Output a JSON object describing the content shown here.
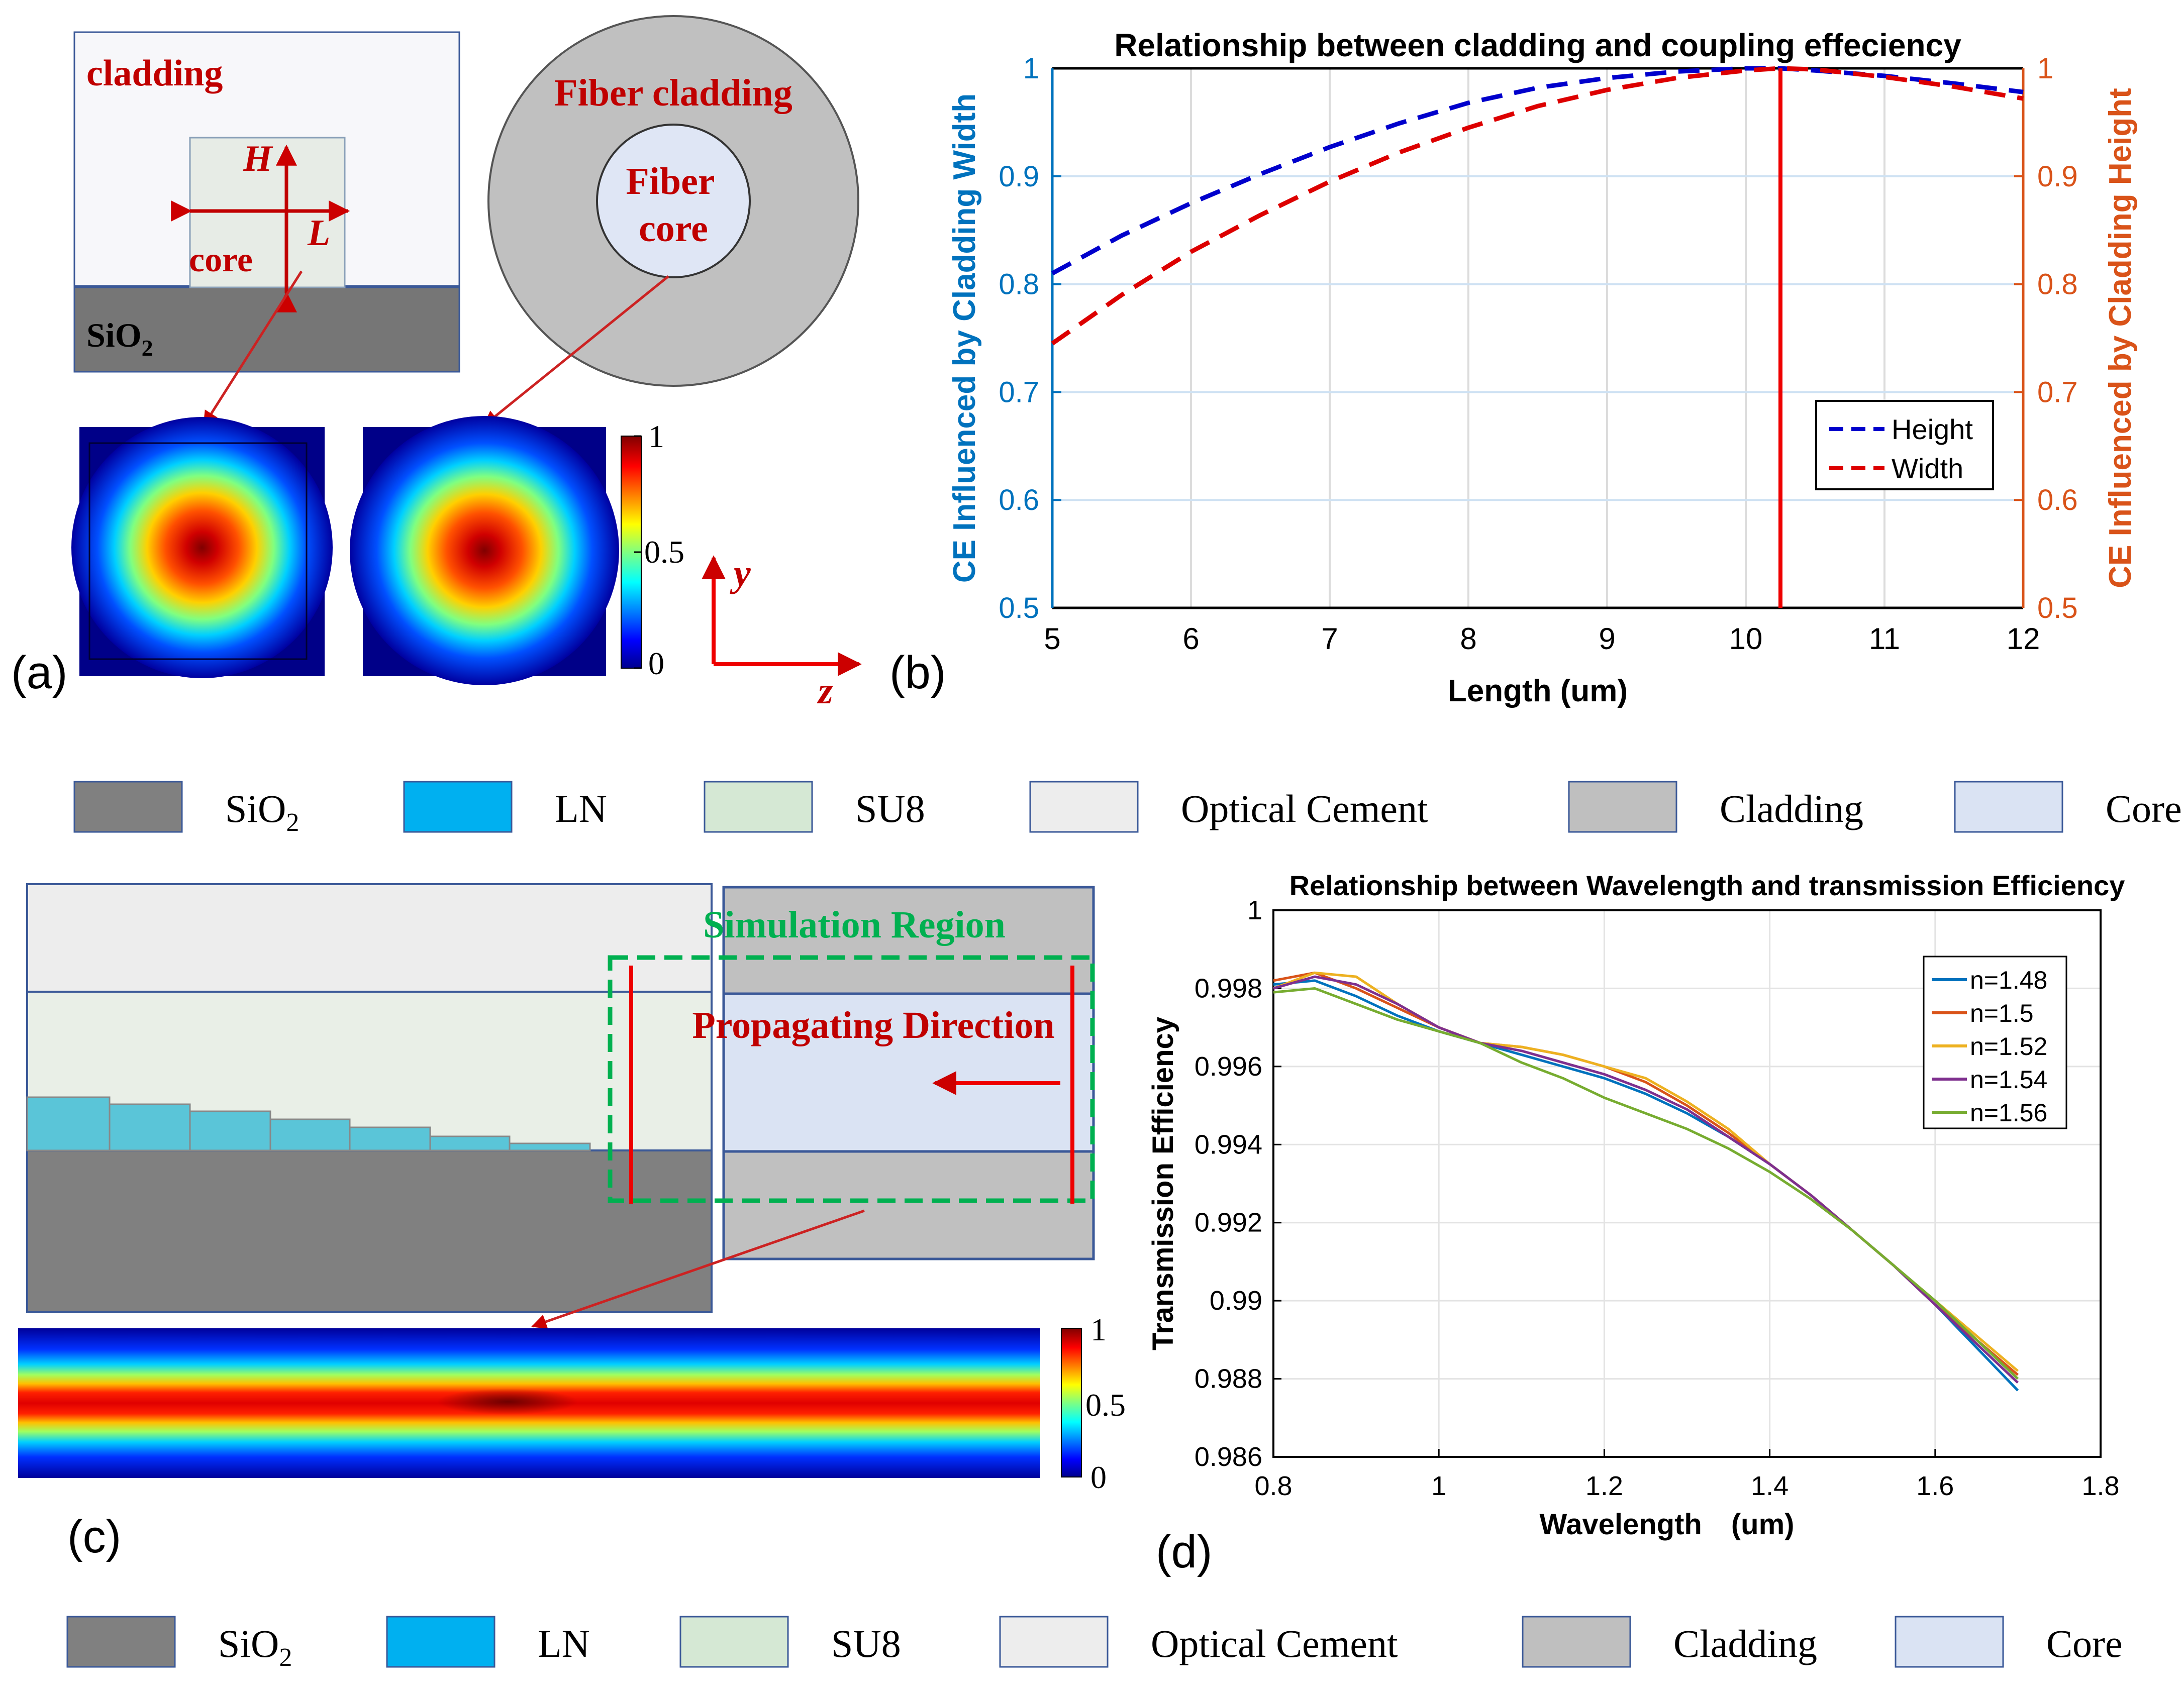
{
  "colors": {
    "sio2": "#808080",
    "ln": "#00b0f0",
    "su8": "#d5e8d4",
    "cement": "#ededed",
    "cladding": "#bfbfbf",
    "core": "#dae3f3",
    "red_label": "#c00000",
    "blue_axis": "#0072bd",
    "orange_axis": "#d95319",
    "green_region": "#00b050"
  },
  "panel_a": {
    "label": "(a)",
    "cladding": "cladding",
    "core": "core",
    "H": "H",
    "L": "L",
    "sio2_main": "SiO",
    "sio2_sub": "2",
    "fiber_cladding": "Fiber cladding",
    "fiber_core_1": "Fiber",
    "fiber_core_2": "core",
    "colorbar": [
      "1",
      "0.5",
      "0"
    ],
    "axis_y": "y",
    "axis_z": "z"
  },
  "panel_b": {
    "label": "(b)"
  },
  "legend_top": [
    {
      "main": "SiO",
      "sub": "2",
      "color_key": "sio2"
    },
    {
      "main": "LN",
      "sub": "",
      "color_key": "ln"
    },
    {
      "main": "SU8",
      "sub": "",
      "color_key": "su8"
    },
    {
      "main": "Optical Cement",
      "sub": "",
      "color_key": "cement"
    },
    {
      "main": "Cladding",
      "sub": "",
      "color_key": "cladding"
    },
    {
      "main": "Core",
      "sub": "",
      "color_key": "core"
    }
  ],
  "legend_bottom": [
    {
      "main": "SiO",
      "sub": "2",
      "color_key": "sio2"
    },
    {
      "main": "LN",
      "sub": "",
      "color_key": "ln"
    },
    {
      "main": "SU8",
      "sub": "",
      "color_key": "su8"
    },
    {
      "main": "Optical Cement",
      "sub": "",
      "color_key": "cement"
    },
    {
      "main": "Cladding",
      "sub": "",
      "color_key": "cladding"
    },
    {
      "main": "Core",
      "sub": "",
      "color_key": "core"
    }
  ],
  "panel_c": {
    "label": "(c)",
    "simulation_region": "Simulation Region",
    "propagating_direction": "Propagating Direction",
    "colorbar": [
      "1",
      "0.5",
      "0"
    ]
  },
  "panel_d": {
    "label": "(d)"
  },
  "chart_data": [
    {
      "type": "line",
      "title": "Relationship between cladding and coupling effeciency",
      "xlabel": "Length   (um)",
      "ylabel_left": "CE Influenced by Cladding Width",
      "ylabel_right": "CE Influenced by Cladding Height",
      "xlim": [
        5,
        12
      ],
      "ylim": [
        0.5,
        1
      ],
      "xticks": [
        "5",
        "6",
        "7",
        "8",
        "9",
        "10",
        "11",
        "12"
      ],
      "yticks_left": [
        "0.5",
        "0.6",
        "0.7",
        "0.8",
        "0.9",
        "1"
      ],
      "yticks_right": [
        "0.5",
        "0.6",
        "0.7",
        "0.8",
        "0.9",
        "1"
      ],
      "vertical_marker_x": 10.25,
      "grid": true,
      "legend_position": "right",
      "x": [
        5,
        5.5,
        6,
        6.5,
        7,
        7.5,
        8,
        8.5,
        9,
        9.5,
        10,
        10.25,
        10.5,
        11,
        11.5,
        12
      ],
      "series": [
        {
          "name": "Height",
          "color": "#0000cc",
          "dash": "dashed",
          "values": [
            0.81,
            0.845,
            0.875,
            0.902,
            0.927,
            0.949,
            0.968,
            0.982,
            0.991,
            0.997,
            1.0,
            1.0,
            0.998,
            0.993,
            0.986,
            0.978
          ]
        },
        {
          "name": "Width",
          "color": "#dd0000",
          "dash": "dashed",
          "values": [
            0.745,
            0.79,
            0.83,
            0.864,
            0.895,
            0.922,
            0.945,
            0.965,
            0.98,
            0.991,
            0.998,
            1.0,
            0.999,
            0.992,
            0.983,
            0.972
          ]
        }
      ]
    },
    {
      "type": "line",
      "title": "Relationship between Wavelength and transmission Efficiency",
      "xlabel": "Wavelength　(um)",
      "ylabel": "Transmission Efficiency",
      "xlim": [
        0.8,
        1.8
      ],
      "ylim": [
        0.986,
        1
      ],
      "xticks": [
        "0.8",
        "1",
        "1.2",
        "1.4",
        "1.6",
        "1.8"
      ],
      "yticks": [
        "0.986",
        "0.988",
        "0.99",
        "0.992",
        "0.994",
        "0.996",
        "0.998",
        "1"
      ],
      "grid": true,
      "legend_position": "top-right",
      "x": [
        0.8,
        0.85,
        0.9,
        0.95,
        1.0,
        1.05,
        1.1,
        1.15,
        1.2,
        1.25,
        1.3,
        1.35,
        1.4,
        1.45,
        1.5,
        1.55,
        1.6,
        1.65,
        1.7
      ],
      "series": [
        {
          "name": "n=1.48",
          "color": "#0072bd",
          "values": [
            0.9981,
            0.9982,
            0.9978,
            0.9973,
            0.9969,
            0.9966,
            0.9963,
            0.996,
            0.9957,
            0.9953,
            0.9948,
            0.9942,
            0.9935,
            0.9927,
            0.9918,
            0.9909,
            0.9899,
            0.9888,
            0.9877
          ]
        },
        {
          "name": "n=1.5",
          "color": "#d95319",
          "values": [
            0.9982,
            0.9984,
            0.998,
            0.9975,
            0.997,
            0.9966,
            0.9965,
            0.9963,
            0.996,
            0.9956,
            0.995,
            0.9943,
            0.9935,
            0.9927,
            0.9918,
            0.9909,
            0.9899,
            0.989,
            0.9881
          ]
        },
        {
          "name": "n=1.52",
          "color": "#edb120",
          "values": [
            0.998,
            0.9984,
            0.9983,
            0.9976,
            0.997,
            0.9966,
            0.9965,
            0.9963,
            0.996,
            0.9957,
            0.9951,
            0.9944,
            0.9935,
            0.9927,
            0.9918,
            0.9909,
            0.99,
            0.9891,
            0.9882
          ]
        },
        {
          "name": "n=1.54",
          "color": "#7e2f8e",
          "values": [
            0.998,
            0.9983,
            0.9981,
            0.9976,
            0.997,
            0.9966,
            0.9964,
            0.9961,
            0.9958,
            0.9954,
            0.9949,
            0.9942,
            0.9935,
            0.9927,
            0.9918,
            0.9909,
            0.9899,
            0.9889,
            0.9879
          ]
        },
        {
          "name": "n=1.56",
          "color": "#77ac30",
          "values": [
            0.9979,
            0.998,
            0.9976,
            0.9972,
            0.9969,
            0.9966,
            0.9961,
            0.9957,
            0.9952,
            0.9948,
            0.9944,
            0.9939,
            0.9933,
            0.9926,
            0.9918,
            0.9909,
            0.99,
            0.989,
            0.988
          ]
        }
      ]
    }
  ]
}
